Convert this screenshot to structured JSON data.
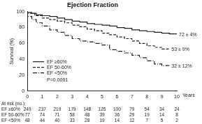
{
  "chart_data": {
    "type": "line",
    "title": "Ejection Fraction",
    "x_label": "Years",
    "y_label": "Survival (%)",
    "xlim": [
      0,
      10
    ],
    "xticks": [
      0,
      1,
      2,
      3,
      4,
      5,
      6,
      7,
      8,
      9,
      10
    ],
    "ylim": [
      0,
      100
    ],
    "yticks": [
      0,
      20,
      40,
      60,
      80,
      100
    ],
    "grid": false,
    "legend": "lower left",
    "annotations": [
      "P=0.0001"
    ],
    "at_risk_title": "At risk (no.):",
    "series": [
      {
        "name": "EF ≥60%",
        "color": "#222222",
        "line_style": "solid",
        "x": [
          0,
          0.3,
          0.6,
          1,
          1.5,
          2,
          2.5,
          3,
          3.5,
          4,
          4.5,
          5,
          5.5,
          6,
          6.5,
          7,
          7.5,
          8,
          8.5,
          9,
          9.5,
          10
        ],
        "values": [
          100,
          99,
          98,
          96,
          95,
          94,
          92,
          90,
          88,
          87,
          85,
          84,
          83,
          82,
          80,
          79,
          77,
          76,
          75,
          74,
          73,
          72
        ],
        "end_label": "72 ± 4%",
        "at_risk": [
          249,
          237,
          219,
          179,
          148,
          125,
          100,
          79,
          54,
          34,
          24
        ]
      },
      {
        "name": "EF 50-60%",
        "color": "#222222",
        "line_style": "dashed",
        "x": [
          0,
          0.5,
          1,
          1.5,
          2,
          2.5,
          3,
          3.5,
          4,
          4.5,
          5,
          5.5,
          6,
          6.5,
          7,
          7.5,
          8,
          8.5,
          9,
          9.5
        ],
        "values": [
          100,
          98,
          95,
          92,
          90,
          88,
          86,
          83,
          81,
          78,
          76,
          73,
          71,
          68,
          66,
          63,
          60,
          57,
          55,
          53
        ],
        "end_label": "53 ± 9%",
        "at_risk": [
          77,
          74,
          71,
          58,
          48,
          39,
          36,
          29,
          19,
          14,
          8
        ]
      },
      {
        "name": "EF <50%",
        "color": "#222222",
        "line_style": "dashdot",
        "x": [
          0,
          0.3,
          0.6,
          1,
          1.5,
          2,
          2.5,
          3,
          3.5,
          4,
          4.5,
          5,
          5.5,
          6,
          6.5,
          7,
          7.5,
          8,
          8.5,
          9,
          9.5
        ],
        "values": [
          100,
          94,
          90,
          86,
          82,
          77,
          74,
          70,
          66,
          63,
          62,
          60,
          58,
          52,
          50,
          48,
          45,
          42,
          38,
          34,
          32
        ],
        "end_label": "32 ± 12%",
        "at_risk": [
          48,
          44,
          40,
          33,
          28,
          19,
          14,
          12,
          7,
          5,
          2
        ]
      }
    ]
  }
}
